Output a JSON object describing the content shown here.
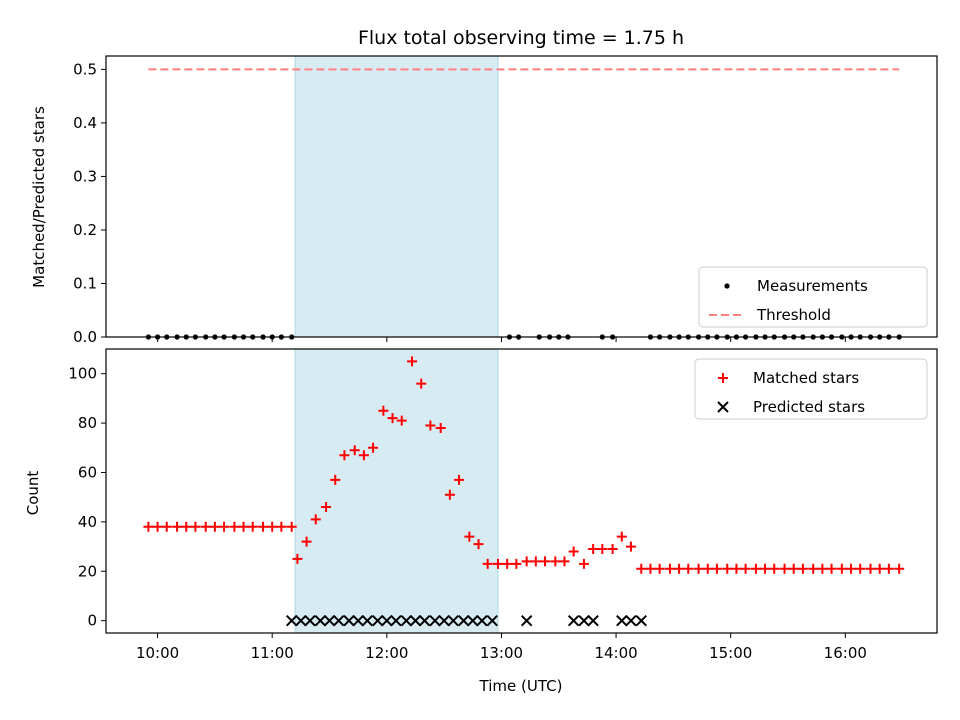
{
  "chart_data": [
    {
      "type": "scatter",
      "title": "Flux total observing time = 1.75 h",
      "xlabel": "",
      "ylabel": "Matched/Predicted stars",
      "ylim": [
        0,
        0.525
      ],
      "yticks": [
        "0.0",
        "0.1",
        "0.2",
        "0.3",
        "0.4",
        "0.5"
      ],
      "x_range_hours": [
        9.55,
        16.8
      ],
      "shaded_span_hours": [
        11.2,
        12.97
      ],
      "legend": {
        "position": "bottom-right",
        "entries": [
          "Measurements",
          "Threshold"
        ]
      },
      "series": [
        {
          "name": "Measurements",
          "marker": "dot",
          "color": "#000000",
          "points": [
            [
              9.92,
              0
            ],
            [
              10.0,
              0
            ],
            [
              10.08,
              0
            ],
            [
              10.17,
              0
            ],
            [
              10.25,
              0
            ],
            [
              10.33,
              0
            ],
            [
              10.42,
              0
            ],
            [
              10.5,
              0
            ],
            [
              10.58,
              0
            ],
            [
              10.67,
              0
            ],
            [
              10.75,
              0
            ],
            [
              10.83,
              0
            ],
            [
              10.92,
              0
            ],
            [
              11.0,
              0
            ],
            [
              11.08,
              0
            ],
            [
              11.17,
              0
            ],
            [
              13.07,
              0
            ],
            [
              13.15,
              0
            ],
            [
              13.33,
              0
            ],
            [
              13.42,
              0
            ],
            [
              13.5,
              0
            ],
            [
              13.58,
              0
            ],
            [
              13.88,
              0
            ],
            [
              13.97,
              0
            ],
            [
              14.3,
              0
            ],
            [
              14.38,
              0
            ],
            [
              14.47,
              0
            ],
            [
              14.55,
              0
            ],
            [
              14.63,
              0
            ],
            [
              14.72,
              0
            ],
            [
              14.8,
              0
            ],
            [
              14.88,
              0
            ],
            [
              14.97,
              0
            ],
            [
              15.05,
              0
            ],
            [
              15.13,
              0
            ],
            [
              15.22,
              0
            ],
            [
              15.3,
              0
            ],
            [
              15.38,
              0
            ],
            [
              15.47,
              0
            ],
            [
              15.55,
              0
            ],
            [
              15.63,
              0
            ],
            [
              15.72,
              0
            ],
            [
              15.8,
              0
            ],
            [
              15.88,
              0
            ],
            [
              15.97,
              0
            ],
            [
              16.05,
              0
            ],
            [
              16.13,
              0
            ],
            [
              16.22,
              0
            ],
            [
              16.3,
              0
            ],
            [
              16.38,
              0
            ],
            [
              16.47,
              0
            ]
          ]
        },
        {
          "name": "Threshold",
          "marker": "dashed-line",
          "color": "#ff7f7f",
          "x": [
            9.92,
            16.47
          ],
          "y": [
            0.5,
            0.5
          ]
        }
      ]
    },
    {
      "type": "scatter",
      "title": "",
      "xlabel": "Time (UTC)",
      "ylabel": "Count",
      "ylim": [
        -5,
        110
      ],
      "yticks": [
        "0",
        "20",
        "40",
        "60",
        "80",
        "100"
      ],
      "xticks": [
        "10:00",
        "11:00",
        "12:00",
        "13:00",
        "14:00",
        "15:00",
        "16:00"
      ],
      "x_range_hours": [
        9.55,
        16.8
      ],
      "shaded_span_hours": [
        11.2,
        12.97
      ],
      "legend": {
        "position": "top-right",
        "entries": [
          "Matched stars",
          "Predicted stars"
        ]
      },
      "series": [
        {
          "name": "Matched stars",
          "marker": "plus",
          "color": "#ff0000",
          "points": [
            [
              9.92,
              38
            ],
            [
              10.0,
              38
            ],
            [
              10.08,
              38
            ],
            [
              10.17,
              38
            ],
            [
              10.25,
              38
            ],
            [
              10.33,
              38
            ],
            [
              10.42,
              38
            ],
            [
              10.5,
              38
            ],
            [
              10.58,
              38
            ],
            [
              10.67,
              38
            ],
            [
              10.75,
              38
            ],
            [
              10.83,
              38
            ],
            [
              10.92,
              38
            ],
            [
              11.0,
              38
            ],
            [
              11.08,
              38
            ],
            [
              11.17,
              38
            ],
            [
              11.22,
              25
            ],
            [
              11.3,
              32
            ],
            [
              11.38,
              41
            ],
            [
              11.47,
              46
            ],
            [
              11.55,
              57
            ],
            [
              11.63,
              67
            ],
            [
              11.72,
              69
            ],
            [
              11.8,
              67
            ],
            [
              11.88,
              70
            ],
            [
              11.97,
              85
            ],
            [
              12.05,
              82
            ],
            [
              12.13,
              81
            ],
            [
              12.22,
              105
            ],
            [
              12.3,
              96
            ],
            [
              12.38,
              79
            ],
            [
              12.47,
              78
            ],
            [
              12.55,
              51
            ],
            [
              12.63,
              57
            ],
            [
              12.72,
              34
            ],
            [
              12.8,
              31
            ],
            [
              12.88,
              23
            ],
            [
              12.97,
              23
            ],
            [
              13.05,
              23
            ],
            [
              13.13,
              23
            ],
            [
              13.22,
              24
            ],
            [
              13.3,
              24
            ],
            [
              13.38,
              24
            ],
            [
              13.47,
              24
            ],
            [
              13.55,
              24
            ],
            [
              13.63,
              28
            ],
            [
              13.72,
              23
            ],
            [
              13.8,
              29
            ],
            [
              13.88,
              29
            ],
            [
              13.97,
              29
            ],
            [
              14.05,
              34
            ],
            [
              14.13,
              30
            ],
            [
              14.22,
              21
            ],
            [
              14.3,
              21
            ],
            [
              14.38,
              21
            ],
            [
              14.47,
              21
            ],
            [
              14.55,
              21
            ],
            [
              14.63,
              21
            ],
            [
              14.72,
              21
            ],
            [
              14.8,
              21
            ],
            [
              14.88,
              21
            ],
            [
              14.97,
              21
            ],
            [
              15.05,
              21
            ],
            [
              15.13,
              21
            ],
            [
              15.22,
              21
            ],
            [
              15.3,
              21
            ],
            [
              15.38,
              21
            ],
            [
              15.47,
              21
            ],
            [
              15.55,
              21
            ],
            [
              15.63,
              21
            ],
            [
              15.72,
              21
            ],
            [
              15.8,
              21
            ],
            [
              15.88,
              21
            ],
            [
              15.97,
              21
            ],
            [
              16.05,
              21
            ],
            [
              16.13,
              21
            ],
            [
              16.22,
              21
            ],
            [
              16.3,
              21
            ],
            [
              16.38,
              21
            ],
            [
              16.47,
              21
            ]
          ]
        },
        {
          "name": "Predicted stars",
          "marker": "x",
          "color": "#000000",
          "points": [
            [
              11.17,
              0
            ],
            [
              11.25,
              0
            ],
            [
              11.33,
              0
            ],
            [
              11.42,
              0
            ],
            [
              11.5,
              0
            ],
            [
              11.58,
              0
            ],
            [
              11.67,
              0
            ],
            [
              11.75,
              0
            ],
            [
              11.83,
              0
            ],
            [
              11.92,
              0
            ],
            [
              12.0,
              0
            ],
            [
              12.08,
              0
            ],
            [
              12.17,
              0
            ],
            [
              12.25,
              0
            ],
            [
              12.33,
              0
            ],
            [
              12.42,
              0
            ],
            [
              12.5,
              0
            ],
            [
              12.58,
              0
            ],
            [
              12.67,
              0
            ],
            [
              12.75,
              0
            ],
            [
              12.83,
              0
            ],
            [
              12.92,
              0
            ],
            [
              13.22,
              0
            ],
            [
              13.63,
              0
            ],
            [
              13.72,
              0
            ],
            [
              13.8,
              0
            ],
            [
              14.05,
              0
            ],
            [
              14.13,
              0
            ],
            [
              14.22,
              0
            ]
          ]
        }
      ]
    }
  ]
}
